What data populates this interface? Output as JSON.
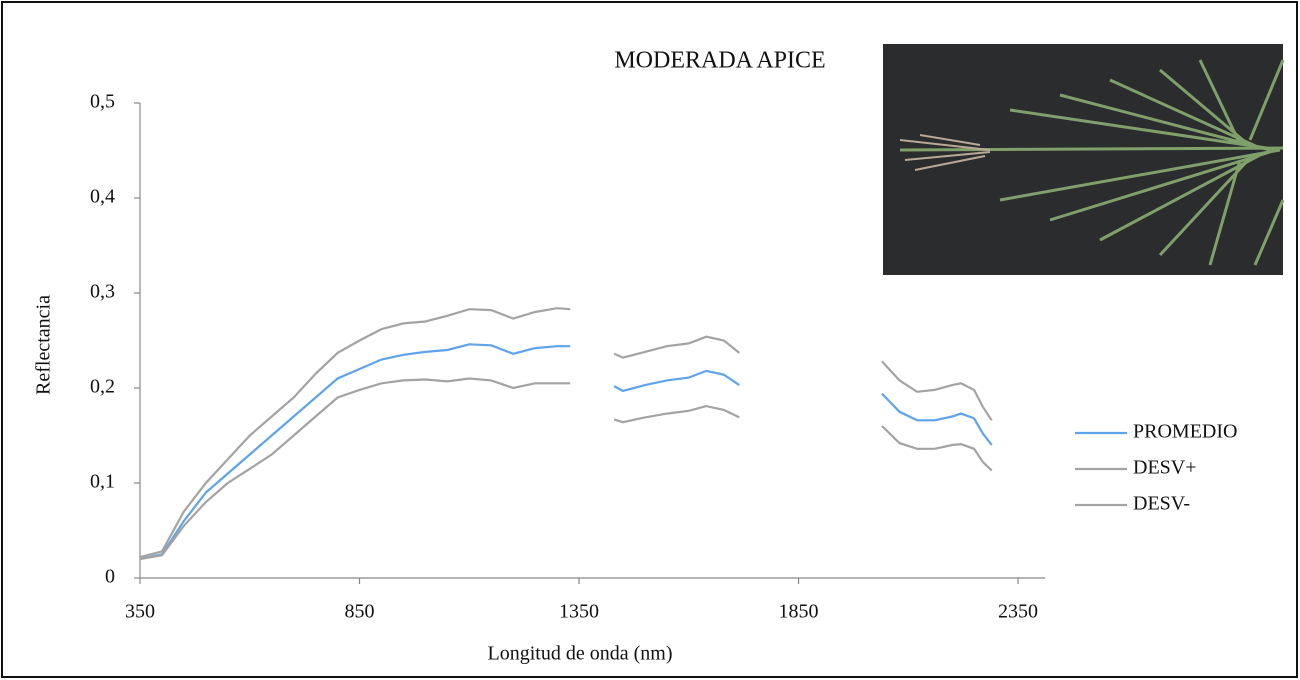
{
  "chart_data": {
    "type": "line",
    "title": "MODERADA APICE",
    "x_label": "Longitud de onda (nm)",
    "y_label": "Reflectancia",
    "x": [
      350,
      400,
      450,
      500,
      550,
      600,
      650,
      700,
      750,
      800,
      850,
      900,
      950,
      1000,
      1050,
      1100,
      1150,
      1200,
      1250,
      1300,
      1330,
      1390,
      1430,
      1450,
      1500,
      1550,
      1600,
      1640,
      1680,
      1715,
      1870,
      2040,
      2080,
      2120,
      2160,
      2200,
      2220,
      2250,
      2270,
      2290
    ],
    "series": [
      {
        "name": "PROMEDIO",
        "color": "#5fa3ea",
        "values": [
          0.02,
          0.025,
          0.06,
          0.09,
          0.11,
          0.13,
          0.15,
          0.17,
          0.19,
          0.21,
          0.22,
          0.23,
          0.235,
          0.238,
          0.24,
          0.246,
          0.245,
          0.236,
          0.242,
          0.244,
          0.244,
          null,
          0.202,
          0.197,
          0.203,
          0.208,
          0.211,
          0.218,
          0.214,
          0.203,
          null,
          0.194,
          0.175,
          0.166,
          0.166,
          0.17,
          0.173,
          0.168,
          0.152,
          0.14
        ]
      },
      {
        "name": "DESV+",
        "color": "#a3a3a3",
        "values": [
          0.022,
          0.028,
          0.07,
          0.1,
          0.125,
          0.15,
          0.17,
          0.19,
          0.215,
          0.237,
          0.25,
          0.262,
          0.268,
          0.27,
          0.276,
          0.283,
          0.282,
          0.273,
          0.28,
          0.284,
          0.283,
          null,
          0.236,
          0.232,
          0.238,
          0.244,
          0.247,
          0.254,
          0.25,
          0.237,
          null,
          0.228,
          0.208,
          0.196,
          0.198,
          0.203,
          0.205,
          0.198,
          0.18,
          0.166
        ]
      },
      {
        "name": "DESV-",
        "color": "#a3a3a3",
        "values": [
          0.02,
          0.024,
          0.055,
          0.08,
          0.1,
          0.115,
          0.13,
          0.15,
          0.17,
          0.19,
          0.198,
          0.205,
          0.208,
          0.209,
          0.207,
          0.21,
          0.208,
          0.2,
          0.205,
          0.205,
          0.205,
          null,
          0.167,
          0.164,
          0.169,
          0.173,
          0.176,
          0.181,
          0.177,
          0.169,
          null,
          0.16,
          0.142,
          0.136,
          0.136,
          0.14,
          0.141,
          0.136,
          0.122,
          0.113
        ]
      }
    ],
    "xlim": [
      350,
      2400
    ],
    "xticks": [
      350,
      850,
      1350,
      1850,
      2350
    ],
    "ylim": [
      0,
      0.5
    ],
    "yticks": [
      0,
      {
        "value": 0.1,
        "label": "0,1"
      },
      {
        "value": 0.2,
        "label": "0,2"
      },
      {
        "value": 0.3,
        "label": "0,3"
      },
      {
        "value": 0.4,
        "label": "0,4"
      },
      {
        "value": 0.5,
        "label": "0,5"
      }
    ],
    "grid": false,
    "legend": "right"
  }
}
